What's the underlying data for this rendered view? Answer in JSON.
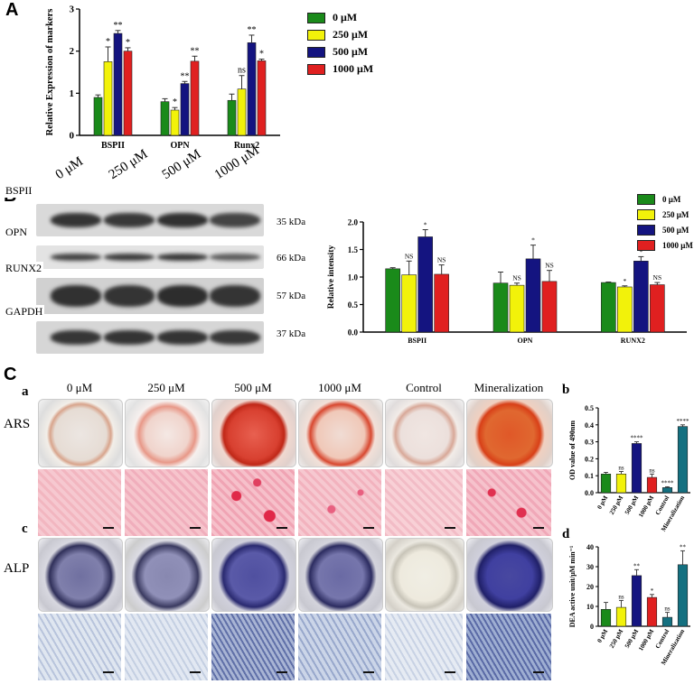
{
  "panel_A": {
    "letter": "A",
    "legend": [
      {
        "label": "0 μM",
        "color": "#1a8a1a"
      },
      {
        "label": "250 μM",
        "color": "#f2f20a"
      },
      {
        "label": "500 μM",
        "color": "#141480"
      },
      {
        "label": "1000 μM",
        "color": "#e02020"
      }
    ]
  },
  "panel_B": {
    "letter": "B",
    "lane_labels": [
      "0 μM",
      "250 μM",
      "500 μM",
      "1000 μM"
    ],
    "row_labels": [
      "BSPII",
      "OPN",
      "RUNX2",
      "GAPDH"
    ],
    "kda_labels": [
      "35 kDa",
      "66 kDa",
      "57 kDa",
      "37 kDa"
    ],
    "legend": [
      {
        "label": "0 μM",
        "color": "#1a8a1a"
      },
      {
        "label": "250 μM",
        "color": "#f2f20a"
      },
      {
        "label": "500 μM",
        "color": "#141480"
      },
      {
        "label": "1000 μM",
        "color": "#e02020"
      }
    ]
  },
  "panel_C": {
    "letter": "C",
    "sub_a": "a",
    "sub_c": "c",
    "sub_b": "b",
    "sub_d": "d",
    "column_labels": [
      "0 μM",
      "250 μM",
      "500 μM",
      "1000 μM",
      "Control",
      "Mineralization"
    ],
    "row_label_ars": "ARS",
    "row_label_alp": "ALP"
  },
  "chart_data": [
    {
      "id": "A",
      "type": "bar",
      "title": "",
      "xlabel": "",
      "ylabel": "Relative Expression of markers",
      "ylim": [
        0,
        3
      ],
      "yticks": [
        "0",
        "1",
        "2",
        "3"
      ],
      "categories": [
        "BSPII",
        "OPN",
        "Runx2"
      ],
      "series": [
        {
          "name": "0 μM",
          "color": "#1a8a1a",
          "values": [
            0.9,
            0.8,
            0.83
          ],
          "errors": [
            0.06,
            0.07,
            0.15
          ],
          "sig": [
            "",
            "",
            ""
          ]
        },
        {
          "name": "250 μM",
          "color": "#f2f20a",
          "values": [
            1.75,
            0.6,
            1.1
          ],
          "errors": [
            0.35,
            0.06,
            0.32
          ],
          "sig": [
            "*",
            "*",
            "ns"
          ]
        },
        {
          "name": "500 μM",
          "color": "#141480",
          "values": [
            2.42,
            1.23,
            2.2
          ],
          "errors": [
            0.07,
            0.05,
            0.18
          ],
          "sig": [
            "**",
            "**",
            "**"
          ]
        },
        {
          "name": "1000 μM",
          "color": "#e02020",
          "values": [
            2.0,
            1.76,
            1.77
          ],
          "errors": [
            0.08,
            0.12,
            0.04
          ],
          "sig": [
            "*",
            "**",
            "*"
          ]
        }
      ],
      "legend_position": "right",
      "grid": false
    },
    {
      "id": "B",
      "type": "bar",
      "title": "",
      "xlabel": "",
      "ylabel": "Relative intensity",
      "ylim": [
        0,
        2.0
      ],
      "yticks": [
        "0.0",
        "0.5",
        "1.0",
        "1.5",
        "2.0"
      ],
      "categories": [
        "BSPII",
        "OPN",
        "RUNX2"
      ],
      "series": [
        {
          "name": "0 μM",
          "color": "#1a8a1a",
          "values": [
            1.15,
            0.89,
            0.9
          ],
          "errors": [
            0.02,
            0.2,
            0.01
          ],
          "sig": [
            "",
            "",
            ""
          ]
        },
        {
          "name": "250 μM",
          "color": "#f2f20a",
          "values": [
            1.04,
            0.85,
            0.82
          ],
          "errors": [
            0.25,
            0.04,
            0.02
          ],
          "sig": [
            "NS",
            "NS",
            "*"
          ]
        },
        {
          "name": "500 μM",
          "color": "#141480",
          "values": [
            1.73,
            1.33,
            1.29
          ],
          "errors": [
            0.13,
            0.25,
            0.08
          ],
          "sig": [
            "*",
            "*",
            "*"
          ]
        },
        {
          "name": "1000 μM",
          "color": "#e02020",
          "values": [
            1.05,
            0.92,
            0.86
          ],
          "errors": [
            0.17,
            0.2,
            0.04
          ],
          "sig": [
            "NS",
            "NS",
            "NS"
          ]
        }
      ],
      "legend_position": "top-right",
      "grid": false
    },
    {
      "id": "Cb",
      "type": "bar",
      "title": "",
      "xlabel": "",
      "ylabel": "OD value of 490nm",
      "ylim": [
        0,
        0.5
      ],
      "yticks": [
        "0.0",
        "0.1",
        "0.2",
        "0.3",
        "0.4",
        "0.5"
      ],
      "categories": [
        "0 μM",
        "250 μM",
        "500 μM",
        "1000 μM",
        "Control",
        "Mineralization"
      ],
      "values": [
        0.11,
        0.11,
        0.29,
        0.09,
        0.03,
        0.39
      ],
      "errors": [
        0.01,
        0.015,
        0.01,
        0.02,
        0.005,
        0.01
      ],
      "sig": [
        "",
        "ns",
        "****",
        "ns",
        "****",
        "****"
      ],
      "colors": [
        "#1a8a1a",
        "#f2f20a",
        "#141480",
        "#e02020",
        "#147080",
        "#147080"
      ],
      "grid": false
    },
    {
      "id": "Cd",
      "type": "bar",
      "title": "",
      "xlabel": "",
      "ylabel": "DEA active unit/μM min⁻¹",
      "ylim": [
        0,
        40
      ],
      "yticks": [
        "0",
        "10",
        "20",
        "30",
        "40"
      ],
      "categories": [
        "0 μM",
        "250 μM",
        "500 μM",
        "1000 μM",
        "Control",
        "Mineralization"
      ],
      "values": [
        8.5,
        9.5,
        25.5,
        14.5,
        4.5,
        31
      ],
      "errors": [
        3.5,
        3.5,
        3,
        1.5,
        2.5,
        7
      ],
      "sig": [
        "",
        "ns",
        "**",
        "*",
        "ns",
        "**"
      ],
      "colors": [
        "#1a8a1a",
        "#f2f20a",
        "#141480",
        "#e02020",
        "#147080",
        "#147080"
      ],
      "grid": false
    }
  ]
}
